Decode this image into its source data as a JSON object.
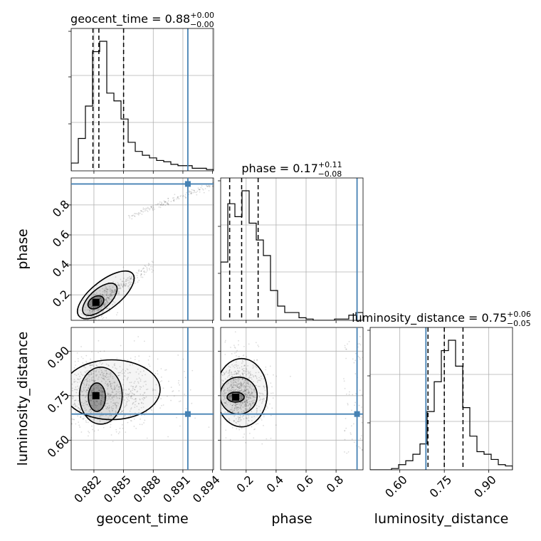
{
  "chart_data": {
    "type": "corner",
    "parameters": [
      "geocent_time",
      "phase",
      "luminosity_distance"
    ],
    "truth_color": "#4682b4",
    "titles": {
      "geocent_time": {
        "prefix": "geocent_time = ",
        "value": "0.88",
        "plus": "+0.00",
        "minus": "−0.00"
      },
      "phase": {
        "prefix": "phase = ",
        "value": "0.17",
        "plus": "+0.11",
        "minus": "−0.08"
      },
      "luminosity_distance": {
        "prefix": "luminosity_distance = ",
        "value": "0.75",
        "plus": "+0.06",
        "minus": "−0.05"
      }
    },
    "truths": {
      "geocent_time": 0.8915,
      "phase": 0.94,
      "luminosity_distance": 0.688
    },
    "axes": {
      "geocent_time": {
        "range": [
          0.8797,
          0.8941
        ],
        "ticks": [
          0.882,
          0.885,
          0.888,
          0.891,
          0.894
        ],
        "ticklabels": [
          "0.882",
          "0.885",
          "0.888",
          "0.891",
          "0.894"
        ]
      },
      "phase": {
        "range": [
          0.03,
          0.98
        ],
        "ticks": [
          0.2,
          0.4,
          0.6,
          0.8
        ],
        "ticklabels": [
          "0.2",
          "0.4",
          "0.6",
          "0.8"
        ]
      },
      "luminosity_distance": {
        "range": [
          0.5,
          0.98
        ],
        "ticks": [
          0.6,
          0.75,
          0.9
        ],
        "ticklabels": [
          "0.60",
          "0.75",
          "0.90"
        ]
      }
    },
    "quantiles": {
      "geocent_time": [
        0.8819,
        0.8825,
        0.885
      ],
      "phase": [
        0.09,
        0.17,
        0.28
      ],
      "luminosity_distance": [
        0.695,
        0.75,
        0.813
      ]
    },
    "hist_geocent_time": [
      0.06,
      0.25,
      0.5,
      0.92,
      1.0,
      0.6,
      0.54,
      0.4,
      0.22,
      0.15,
      0.12,
      0.1,
      0.08,
      0.07,
      0.05,
      0.04,
      0.04,
      0.02,
      0.02,
      0.01
    ],
    "hist_phase": [
      0.45,
      0.9,
      0.8,
      1.0,
      0.75,
      0.62,
      0.5,
      0.23,
      0.11,
      0.06,
      0.06,
      0.02,
      0.01,
      0.0,
      0.0,
      0.0,
      0.01,
      0.01,
      0.04,
      0.06
    ],
    "hist_luminosity_distance": [
      0.0,
      0.0,
      0.0,
      0.01,
      0.04,
      0.07,
      0.12,
      0.2,
      0.45,
      0.68,
      0.92,
      1.0,
      0.8,
      0.48,
      0.26,
      0.14,
      0.12,
      0.08,
      0.04,
      0.03
    ]
  }
}
